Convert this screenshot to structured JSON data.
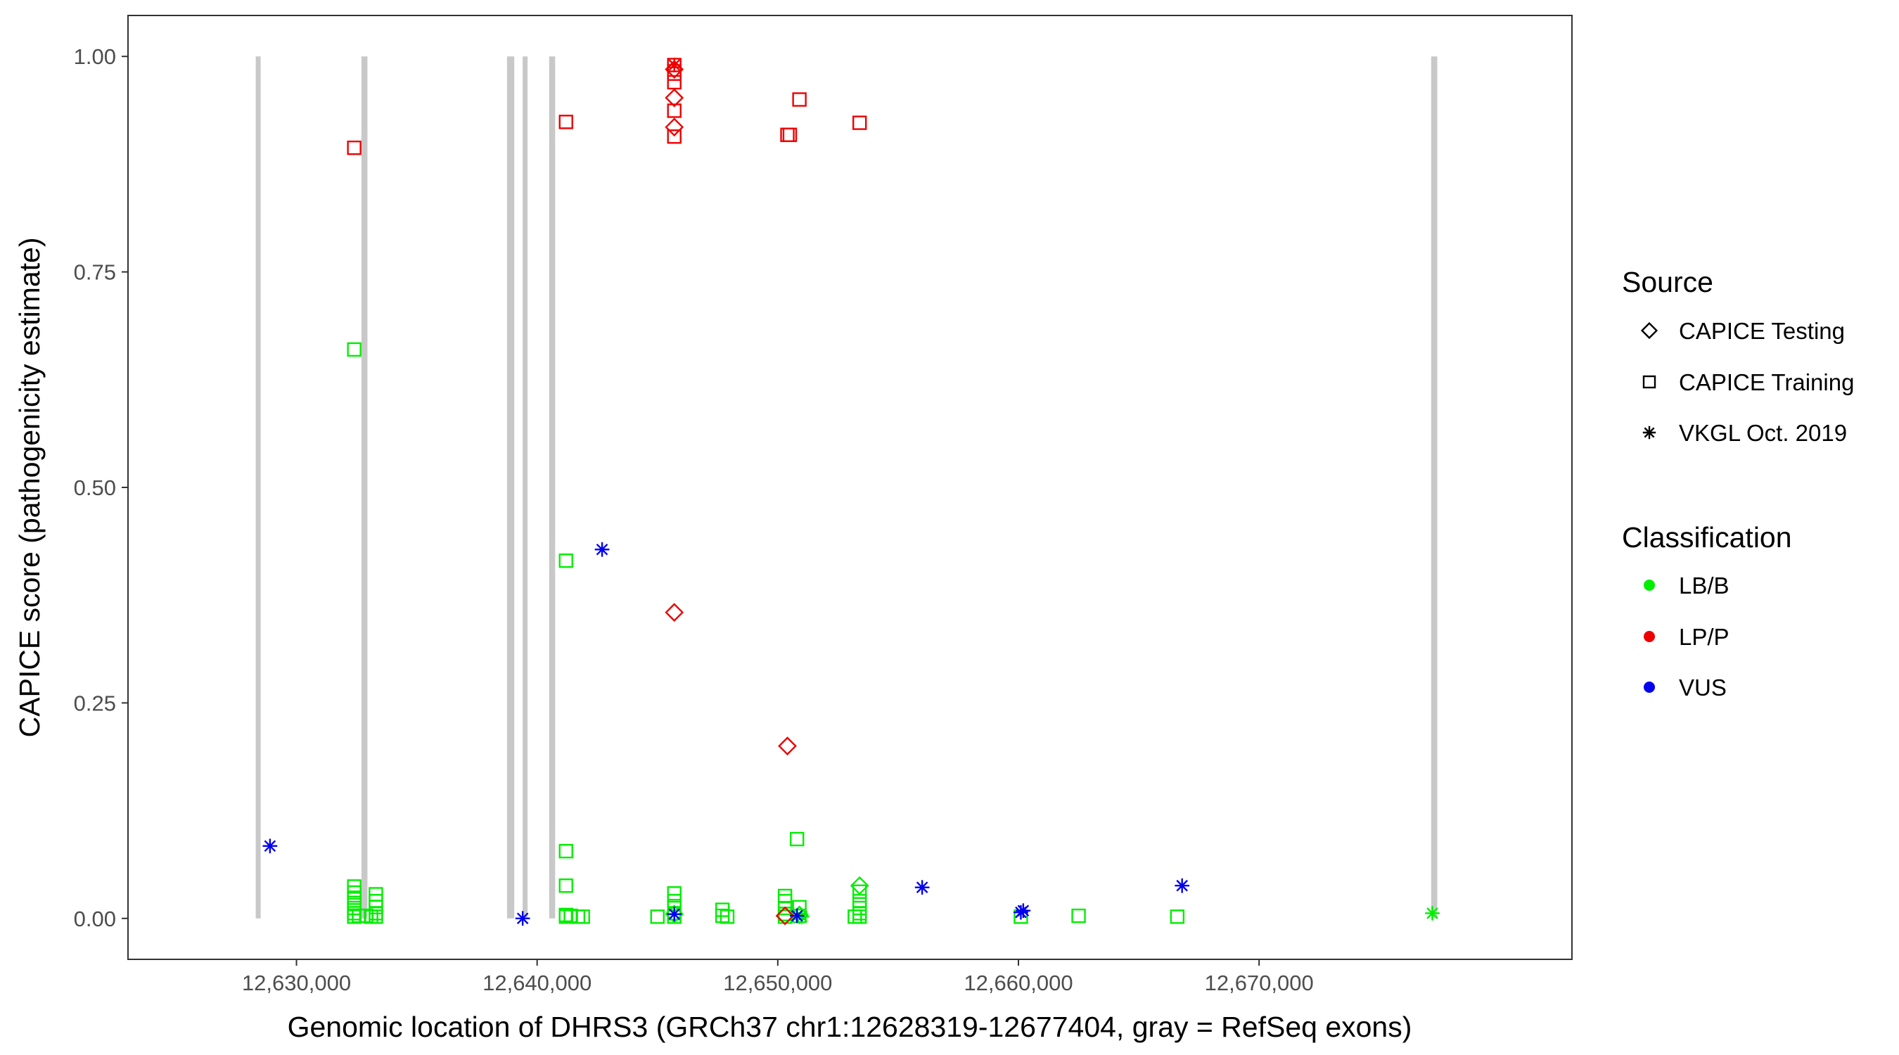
{
  "chart_data": {
    "type": "scatter",
    "xlabel": "Genomic location of DHRS3 (GRCh37 chr1:12628319-12677404, gray = RefSeq exons)",
    "ylabel": "CAPICE score (pathogenicity estimate)",
    "xlim": [
      12623000,
      12683000
    ],
    "ylim": [
      -0.0475,
      1.0475
    ],
    "x_ticks": [
      12630000,
      12640000,
      12650000,
      12660000,
      12670000
    ],
    "x_tick_labels": [
      "12,630,000",
      "12,640,000",
      "12,650,000",
      "12,660,000",
      "12,670,000"
    ],
    "y_ticks": [
      0,
      0.25,
      0.5,
      0.75,
      1.0
    ],
    "y_tick_labels": [
      "0.00",
      "0.25",
      "0.50",
      "0.75",
      "1.00"
    ],
    "grid": false,
    "exons": [
      {
        "start": 12628319,
        "end": 12628500
      },
      {
        "start": 12632700,
        "end": 12632950
      },
      {
        "start": 12638750,
        "end": 12639050
      },
      {
        "start": 12639400,
        "end": 12639600
      },
      {
        "start": 12640500,
        "end": 12640750
      },
      {
        "start": 12677150,
        "end": 12677404
      }
    ],
    "exon_color": "#c8c8c8",
    "colors": {
      "LB/B": "#00ee00",
      "LP/P": "#ee0000",
      "VUS": "#0000ee"
    },
    "legend": {
      "position": "right",
      "source_title": "Source",
      "source_items": [
        {
          "label": "CAPICE Testing",
          "shape": "diamond"
        },
        {
          "label": "CAPICE Training",
          "shape": "square"
        },
        {
          "label": "VKGL Oct. 2019",
          "shape": "star"
        }
      ],
      "class_title": "Classification",
      "class_items": [
        {
          "label": "LB/B",
          "color": "#00ee00"
        },
        {
          "label": "LP/P",
          "color": "#ee0000"
        },
        {
          "label": "VUS",
          "color": "#0000ee"
        }
      ]
    },
    "series": [
      {
        "name": "CAPICE Training",
        "classification": "LB/B",
        "shape": "square",
        "points": [
          [
            12632400,
            0.66
          ],
          [
            12632400,
            0.037
          ],
          [
            12632400,
            0.03
          ],
          [
            12632400,
            0.024
          ],
          [
            12632400,
            0.018
          ],
          [
            12632400,
            0.012
          ],
          [
            12632400,
            0.006
          ],
          [
            12632400,
            0.002
          ],
          [
            12632600,
            0.003
          ],
          [
            12632900,
            0.003
          ],
          [
            12633100,
            0.002
          ],
          [
            12633300,
            0.028
          ],
          [
            12633300,
            0.02
          ],
          [
            12633300,
            0.013
          ],
          [
            12633300,
            0.006
          ],
          [
            12633300,
            0.002
          ],
          [
            12641200,
            0.415
          ],
          [
            12641200,
            0.078
          ],
          [
            12641200,
            0.038
          ],
          [
            12641200,
            0.004
          ],
          [
            12641200,
            0.002
          ],
          [
            12641400,
            0.003
          ],
          [
            12641700,
            0.002
          ],
          [
            12641900,
            0.002
          ],
          [
            12645000,
            0.002
          ],
          [
            12645700,
            0.029
          ],
          [
            12645700,
            0.02
          ],
          [
            12645700,
            0.012
          ],
          [
            12645700,
            0.006
          ],
          [
            12645700,
            0.002
          ],
          [
            12647700,
            0.01
          ],
          [
            12647700,
            0.003
          ],
          [
            12647900,
            0.002
          ],
          [
            12650300,
            0.026
          ],
          [
            12650300,
            0.02
          ],
          [
            12650300,
            0.012
          ],
          [
            12650300,
            0.005
          ],
          [
            12650300,
            0.002
          ],
          [
            12650800,
            0.092
          ],
          [
            12650900,
            0.013
          ],
          [
            12650900,
            0.003
          ],
          [
            12653400,
            0.031
          ],
          [
            12653400,
            0.02
          ],
          [
            12653400,
            0.012
          ],
          [
            12653400,
            0.006
          ],
          [
            12653400,
            0.002
          ],
          [
            12653200,
            0.002
          ],
          [
            12660100,
            0.002
          ],
          [
            12662500,
            0.003
          ],
          [
            12666600,
            0.002
          ]
        ]
      },
      {
        "name": "CAPICE Training",
        "classification": "LP/P",
        "shape": "square",
        "points": [
          [
            12632400,
            0.894
          ],
          [
            12641200,
            0.924
          ],
          [
            12645700,
            0.99
          ],
          [
            12645700,
            0.98
          ],
          [
            12645700,
            0.97
          ],
          [
            12645700,
            0.937
          ],
          [
            12645700,
            0.907
          ],
          [
            12650400,
            0.909
          ],
          [
            12650500,
            0.909
          ],
          [
            12650900,
            0.95
          ],
          [
            12653400,
            0.923
          ]
        ]
      },
      {
        "name": "CAPICE Testing",
        "classification": "LB/B",
        "shape": "diamond",
        "points": [
          [
            12653400,
            0.038
          ],
          [
            12645700,
            0.005
          ],
          [
            12650900,
            0.004
          ]
        ]
      },
      {
        "name": "CAPICE Testing",
        "classification": "LP/P",
        "shape": "diamond",
        "points": [
          [
            12645700,
            0.985
          ],
          [
            12645700,
            0.952
          ],
          [
            12645700,
            0.918
          ],
          [
            12645700,
            0.355
          ],
          [
            12650400,
            0.2
          ],
          [
            12650300,
            0.003
          ]
        ]
      },
      {
        "name": "VKGL Oct. 2019",
        "classification": "LB/B",
        "shape": "star",
        "points": [
          [
            12677200,
            0.006
          ],
          [
            12651000,
            0.002
          ]
        ]
      },
      {
        "name": "VKGL Oct. 2019",
        "classification": "LP/P",
        "shape": "star",
        "points": [
          [
            12645700,
            0.99
          ]
        ]
      },
      {
        "name": "VKGL Oct. 2019",
        "classification": "VUS",
        "shape": "star",
        "points": [
          [
            12628900,
            0.084
          ],
          [
            12639400,
            0.0
          ],
          [
            12642700,
            0.428
          ],
          [
            12645700,
            0.005
          ],
          [
            12650800,
            0.003
          ],
          [
            12656000,
            0.036
          ],
          [
            12660100,
            0.007
          ],
          [
            12660200,
            0.009
          ],
          [
            12666800,
            0.038
          ]
        ]
      }
    ]
  }
}
